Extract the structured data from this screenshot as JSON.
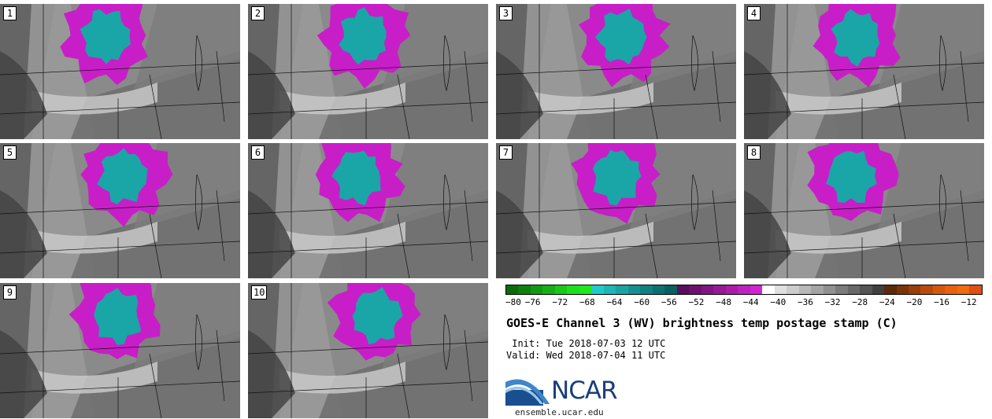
{
  "panels": [
    {
      "label": "1"
    },
    {
      "label": "2"
    },
    {
      "label": "3"
    },
    {
      "label": "4"
    },
    {
      "label": "5"
    },
    {
      "label": "6"
    },
    {
      "label": "7"
    },
    {
      "label": "8"
    },
    {
      "label": "9"
    },
    {
      "label": "10"
    }
  ],
  "colorbar": {
    "colors": [
      "#0b6b0b",
      "#0e800e",
      "#129912",
      "#15b015",
      "#18c918",
      "#1be01b",
      "#1ee81e",
      "#22c9c9",
      "#1fb5b5",
      "#1aa3a3",
      "#159090",
      "#108080",
      "#0c7070",
      "#086060",
      "#5a0d5a",
      "#6e116e",
      "#821582",
      "#961996",
      "#aa1daa",
      "#be21be",
      "#d224d2",
      "#ffffff",
      "#e0e0e0",
      "#cccccc",
      "#b8b8b8",
      "#a4a4a4",
      "#909090",
      "#7c7c7c",
      "#686868",
      "#545454",
      "#404040",
      "#5a2a0a",
      "#7a340a",
      "#9a3e0a",
      "#ba4a0c",
      "#d4570e",
      "#e8610e",
      "#f06a10",
      "#e05010"
    ],
    "ticks": [
      "−80",
      "−76",
      "−72",
      "−68",
      "−64",
      "−60",
      "−56",
      "−52",
      "−48",
      "−44",
      "−40",
      "−36",
      "−32",
      "−28",
      "−24",
      "−20",
      "−16",
      "−12"
    ],
    "min": -80,
    "max": -10
  },
  "title": "GOES-E Channel 3 (WV) brightness temp postage stamp (C)",
  "init_text": " Init: Tue 2018-07-03 12 UTC",
  "valid_text": "Valid: Wed 2018-07-04 11 UTC",
  "logo_text": "NCAR",
  "url": "ensemble.ucar.edu"
}
